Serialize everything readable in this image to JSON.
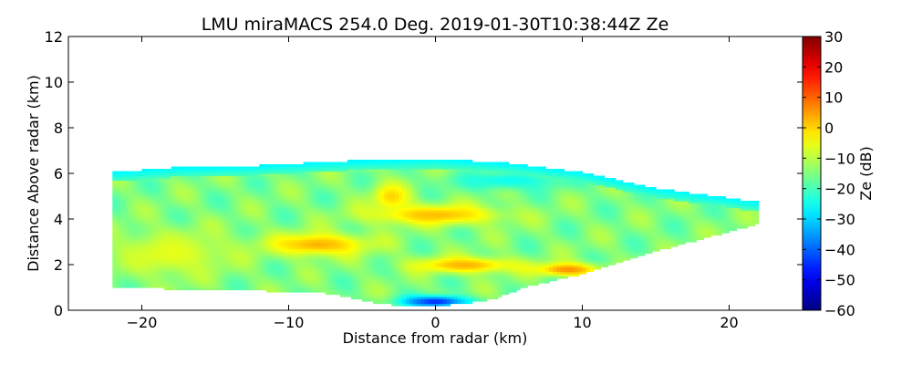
{
  "chart_data": {
    "type": "heatmap",
    "title": "LMU miraMACS 254.0 Deg. 2019-01-30T10:38:44Z  Ze",
    "xlabel": "Distance from radar (km)",
    "ylabel": "Distance Above radar  (km)",
    "xlim": [
      -25,
      25
    ],
    "ylim": [
      0,
      12
    ],
    "xticks": [
      -20,
      -10,
      0,
      10,
      20
    ],
    "xtick_labels": [
      "−20",
      "−10",
      "0",
      "10",
      "20"
    ],
    "yticks": [
      0,
      2,
      4,
      6,
      8,
      10,
      12
    ],
    "ytick_labels": [
      "0",
      "2",
      "4",
      "6",
      "8",
      "10",
      "12"
    ],
    "colorbar": {
      "label": "Ze (dB)",
      "range": [
        -60,
        30
      ],
      "colormap": "jet",
      "ticks": [
        -60,
        -50,
        -40,
        -30,
        -20,
        -10,
        0,
        10,
        20,
        30
      ],
      "tick_labels": [
        "−60",
        "−50",
        "−40",
        "−30",
        "−20",
        "−10",
        "0",
        "10",
        "20",
        "30"
      ]
    },
    "echo_region": {
      "top_boundary": [
        [
          -22,
          6.0
        ],
        [
          -18,
          6.2
        ],
        [
          -12,
          6.3
        ],
        [
          -6,
          6.5
        ],
        [
          0,
          6.6
        ],
        [
          5,
          6.4
        ],
        [
          10,
          6.0
        ],
        [
          15,
          5.3
        ],
        [
          22,
          4.7
        ]
      ],
      "bottom_boundary": [
        [
          -22,
          1.0
        ],
        [
          -15,
          0.9
        ],
        [
          -8,
          0.8
        ],
        [
          -6,
          0.6
        ],
        [
          -4,
          0.3
        ],
        [
          -2,
          0.2
        ],
        [
          0,
          0.2
        ],
        [
          2,
          0.3
        ],
        [
          4,
          0.5
        ],
        [
          6,
          1.0
        ],
        [
          10,
          1.6
        ],
        [
          15,
          2.6
        ],
        [
          22,
          3.8
        ]
      ],
      "background_ze_db": -15,
      "features": [
        {
          "x": 0,
          "y": 0.4,
          "ze_db": -45,
          "sx": 2.2,
          "sy": 0.25
        },
        {
          "x": -8,
          "y": 2.9,
          "ze_db": 3,
          "sx": 3.5,
          "sy": 0.5
        },
        {
          "x": 0,
          "y": 4.2,
          "ze_db": 2,
          "sx": 4.5,
          "sy": 0.45
        },
        {
          "x": -3,
          "y": 5.0,
          "ze_db": 0,
          "sx": 1.3,
          "sy": 0.6
        },
        {
          "x": 2,
          "y": 2.0,
          "ze_db": 3,
          "sx": 3.5,
          "sy": 0.35
        },
        {
          "x": 9,
          "y": 1.8,
          "ze_db": 6,
          "sx": 2.2,
          "sy": 0.3
        },
        {
          "x": -18,
          "y": 2.5,
          "ze_db": -6,
          "sx": 4.0,
          "sy": 1.0
        },
        {
          "x": 5,
          "y": 5.7,
          "ze_db": -25,
          "sx": 4.0,
          "sy": 0.4
        }
      ]
    }
  }
}
